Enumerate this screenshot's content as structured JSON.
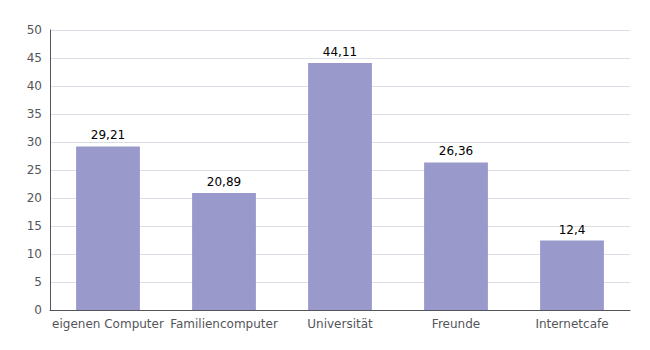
{
  "chart_data": {
    "type": "bar",
    "categories": [
      "eigenen Computer",
      "Familiencomputer",
      "Universität",
      "Freunde",
      "Internetcafe"
    ],
    "values": [
      29.21,
      20.89,
      44.11,
      26.36,
      12.4
    ],
    "value_labels": [
      "29,21",
      "20,89",
      "44,11",
      "26,36",
      "12,4"
    ],
    "data_labels": true,
    "color": "#9999cc",
    "ylim": [
      0,
      50
    ],
    "yticks": [
      0,
      5,
      10,
      15,
      20,
      25,
      30,
      35,
      40,
      45,
      50
    ],
    "grid": true
  }
}
